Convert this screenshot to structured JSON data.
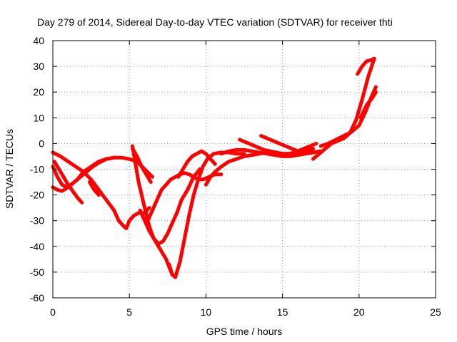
{
  "chart_data": {
    "type": "line",
    "title": "Day 279 of 2014, Sidereal Day-to-day VTEC variation (SDTVAR) for receiver thti",
    "xlabel": "GPS time / hours",
    "ylabel": "SDTVAR / TECUs",
    "xlim": [
      0,
      25
    ],
    "ylim": [
      -60,
      40
    ],
    "xticks": [
      0,
      5,
      10,
      15,
      20,
      25
    ],
    "yticks": [
      -60,
      -50,
      -40,
      -30,
      -20,
      -10,
      0,
      10,
      20,
      30,
      40
    ],
    "grid": true,
    "legend": "none",
    "series_color": "#ff0000",
    "series": [
      {
        "x": [
          0.0,
          0.5,
          1.0,
          1.5,
          2.0,
          2.5,
          3.0,
          3.5,
          4.0,
          4.3,
          4.6,
          4.8,
          5.0,
          5.3,
          5.6,
          6.0,
          6.3
        ],
        "values": [
          -3.5,
          -5,
          -7,
          -9,
          -11,
          -14,
          -18,
          -22,
          -26,
          -30,
          -32,
          -33,
          -30,
          -28,
          -27,
          -27,
          -25
        ]
      },
      {
        "x": [
          0.0,
          0.3,
          0.6,
          0.9,
          1.2,
          1.6,
          2.0,
          2.5,
          3.0,
          3.5,
          4.0
        ],
        "values": [
          -9,
          -13,
          -16,
          -17,
          -16,
          -14,
          -11,
          -9,
          -7,
          -6,
          -5.5
        ]
      },
      {
        "x": [
          0.0,
          0.3,
          0.6,
          1.0,
          1.4,
          1.8,
          2.2,
          2.6,
          3.0,
          3.5,
          4.0,
          4.5,
          5.0,
          5.5,
          6.0,
          6.5
        ],
        "values": [
          -17,
          -18,
          -18.5,
          -17,
          -15,
          -13,
          -11,
          -9,
          -7.5,
          -6,
          -5.5,
          -5.5,
          -6,
          -7,
          -10,
          -13
        ]
      },
      {
        "x": [
          0.1,
          0.4,
          0.7,
          1.0,
          1.3,
          1.6,
          1.9
        ],
        "values": [
          -7,
          -10,
          -13,
          -16,
          -18.5,
          -21,
          -23
        ]
      },
      {
        "x": [
          2.4,
          2.7,
          3.0
        ],
        "values": [
          -15,
          -18,
          -20
        ]
      },
      {
        "x": [
          5.2,
          5.5,
          5.8,
          6.1,
          6.4
        ],
        "values": [
          -2,
          -5,
          -9,
          -12,
          -15
        ]
      },
      {
        "x": [
          5.2,
          5.4,
          5.6,
          5.8,
          6.0,
          6.2,
          6.4,
          6.6,
          6.8,
          7.0,
          7.2,
          7.4,
          7.6,
          7.8,
          8.0
        ],
        "values": [
          -1,
          -8,
          -15,
          -20,
          -25,
          -30,
          -34,
          -37,
          -39,
          -41,
          -43,
          -45,
          -48,
          -51,
          -52
        ]
      },
      {
        "x": [
          5.7,
          6.0,
          6.3,
          6.6,
          6.9,
          7.2,
          7.5,
          7.8,
          8.1,
          8.4,
          8.8,
          9.2,
          9.6
        ],
        "values": [
          -26,
          -30,
          -34,
          -37,
          -39,
          -38,
          -35,
          -31,
          -27,
          -22,
          -18,
          -13,
          -10
        ]
      },
      {
        "x": [
          6.2,
          6.5,
          6.8,
          7.1,
          7.4,
          7.7,
          8.0,
          8.3,
          8.6,
          8.9,
          9.2,
          9.5,
          9.8,
          10.2,
          10.6,
          11.0
        ],
        "values": [
          -30,
          -26,
          -22,
          -18,
          -16,
          -14,
          -13,
          -12,
          -11.5,
          -12,
          -13,
          -14,
          -14,
          -13,
          -12,
          -12
        ]
      },
      {
        "x": [
          7.6,
          7.8,
          8.0,
          8.3,
          8.6,
          8.9,
          9.2,
          9.5,
          9.8,
          10.1,
          10.5,
          11.0,
          11.5,
          12.0,
          12.5
        ],
        "values": [
          -47,
          -51,
          -52,
          -46,
          -37,
          -28,
          -20,
          -14,
          -9,
          -6,
          -4,
          -3.5,
          -3.5,
          -4,
          -4
        ]
      },
      {
        "x": [
          8.2,
          8.5,
          8.8,
          9.1,
          9.4,
          9.7,
          10.0,
          10.3,
          10.6
        ],
        "values": [
          -13,
          -10,
          -7,
          -5,
          -4,
          -3,
          -4,
          -6,
          -8
        ]
      },
      {
        "x": [
          10.0,
          10.3,
          10.6,
          11.0,
          11.5,
          12.0,
          12.5,
          13.0,
          13.5,
          14.0,
          14.5,
          15.0,
          15.5,
          16.0,
          16.5,
          17.0
        ],
        "values": [
          -16,
          -13,
          -11,
          -9,
          -7,
          -6,
          -5,
          -4.5,
          -4,
          -3.5,
          -3.5,
          -4,
          -4,
          -4,
          -3.5,
          -3
        ]
      },
      {
        "x": [
          11.0,
          11.5,
          12.0,
          12.5,
          13.0,
          13.5,
          14.0,
          14.5,
          15.0,
          15.5,
          16.0,
          16.5,
          17.0,
          17.5
        ],
        "values": [
          -4,
          -3,
          -2.5,
          -2.5,
          -3,
          -3.5,
          -4,
          -4.5,
          -5,
          -5,
          -4.5,
          -4,
          -3.5,
          -3
        ]
      },
      {
        "x": [
          12.2,
          12.6,
          13.0,
          13.4,
          13.8,
          14.2,
          14.6,
          15.0,
          15.4,
          15.8,
          16.2,
          16.6,
          17.0
        ],
        "values": [
          1.5,
          0.5,
          -0.5,
          -1.5,
          -2.5,
          -3,
          -3.5,
          -4,
          -4,
          -3.5,
          -3,
          -2.5,
          -2
        ]
      },
      {
        "x": [
          13.6,
          14.0,
          14.4,
          14.8,
          15.2,
          15.6,
          16.0,
          16.4,
          16.8,
          17.2
        ],
        "values": [
          3,
          2,
          1,
          0,
          -1,
          -2,
          -3,
          -2,
          -1,
          0
        ]
      },
      {
        "x": [
          17.0,
          17.4,
          17.8,
          18.2,
          18.6,
          19.0,
          19.4,
          19.8,
          20.2,
          20.6,
          21.0
        ],
        "values": [
          -6,
          -4,
          -2,
          0,
          1,
          2,
          4,
          9,
          17,
          26,
          33
        ]
      },
      {
        "x": [
          17.5,
          18.0,
          18.5,
          19.0,
          19.5,
          20.0,
          20.4,
          20.8,
          21.1
        ],
        "values": [
          -1,
          0,
          1.5,
          3,
          4.5,
          7,
          12,
          18,
          22
        ]
      },
      {
        "x": [
          20.1,
          20.5,
          20.9,
          21.1
        ],
        "values": [
          10,
          15,
          18,
          20
        ]
      },
      {
        "x": [
          19.9,
          20.2,
          20.5,
          20.8,
          21.0
        ],
        "values": [
          27,
          30,
          32,
          32.5,
          33
        ]
      }
    ]
  }
}
